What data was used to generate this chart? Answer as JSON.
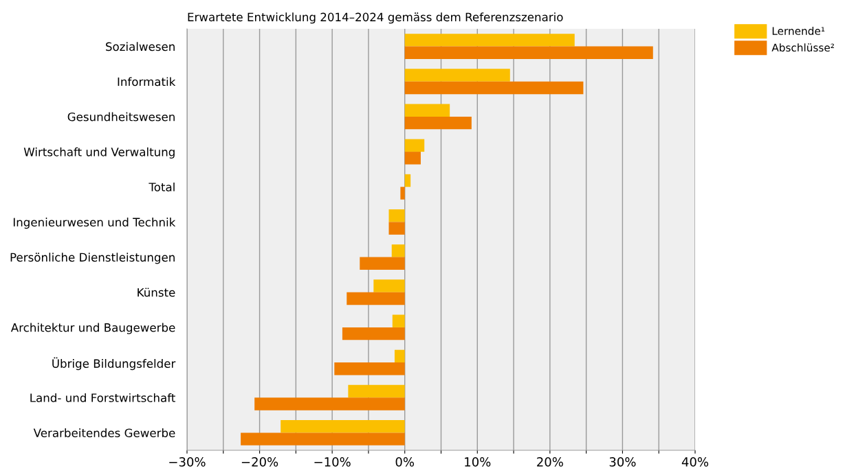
{
  "chart_data": {
    "type": "bar",
    "orientation": "horizontal",
    "title": "Erwartete Entwicklung 2014–2024 gemäss dem Referenzszenario",
    "categories": [
      "Sozialwesen",
      "Informatik",
      "Gesundheitswesen",
      "Wirtschaft und Verwaltung",
      "Total",
      "Ingenieurwesen und Technik",
      "Persönliche Dienstleistungen",
      "Künste",
      "Architektur und Baugewerbe",
      "Übrige Bildungsfelder",
      "Land- und Forstwirtschaft",
      "Verarbeitendes Gewerbe"
    ],
    "series": [
      {
        "name": "Lernende¹",
        "color": "#fbbf00",
        "values": [
          23.4,
          14.5,
          6.2,
          2.7,
          0.8,
          -2.2,
          -1.8,
          -4.3,
          -1.7,
          -1.4,
          -7.8,
          -17.1
        ]
      },
      {
        "name": "Abschlüsse²",
        "color": "#ef7d00",
        "values": [
          34.2,
          24.6,
          9.2,
          2.2,
          -0.6,
          -2.2,
          -6.2,
          -8.0,
          -8.6,
          -9.7,
          -20.7,
          -22.6
        ]
      }
    ],
    "xlim": [
      -30,
      40
    ],
    "xticks": [
      {
        "value": -30,
        "label": "−30%"
      },
      {
        "value": -25,
        "label": null
      },
      {
        "value": -20,
        "label": "−20%"
      },
      {
        "value": -15,
        "label": null
      },
      {
        "value": -10,
        "label": "−10%"
      },
      {
        "value": -5,
        "label": null
      },
      {
        "value": 0,
        "label": "0%"
      },
      {
        "value": 5,
        "label": null
      },
      {
        "value": 10,
        "label": "10%"
      },
      {
        "value": 15,
        "label": null
      },
      {
        "value": 20,
        "label": "20%"
      },
      {
        "value": 25,
        "label": null
      },
      {
        "value": 30,
        "label": "30%"
      },
      {
        "value": 35,
        "label": null
      },
      {
        "value": 40,
        "label": "40%"
      }
    ],
    "grid": "x",
    "legend": "top right"
  }
}
